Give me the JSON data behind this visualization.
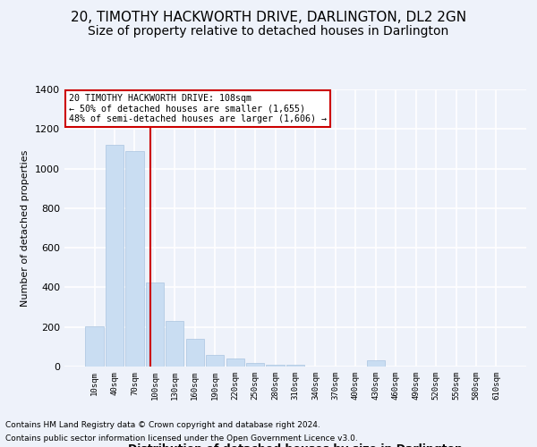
{
  "title": "20, TIMOTHY HACKWORTH DRIVE, DARLINGTON, DL2 2GN",
  "subtitle": "Size of property relative to detached houses in Darlington",
  "xlabel": "Distribution of detached houses by size in Darlington",
  "ylabel": "Number of detached properties",
  "bar_labels": [
    "10sqm",
    "40sqm",
    "70sqm",
    "100sqm",
    "130sqm",
    "160sqm",
    "190sqm",
    "220sqm",
    "250sqm",
    "280sqm",
    "310sqm",
    "340sqm",
    "370sqm",
    "400sqm",
    "430sqm",
    "460sqm",
    "490sqm",
    "520sqm",
    "550sqm",
    "580sqm",
    "610sqm"
  ],
  "bar_values": [
    205,
    1120,
    1090,
    425,
    230,
    140,
    60,
    42,
    20,
    10,
    10,
    0,
    0,
    0,
    30,
    0,
    0,
    0,
    0,
    0,
    0
  ],
  "bar_color": "#c9ddf2",
  "bar_edge_color": "#aac4e0",
  "red_line_label": "20 TIMOTHY HACKWORTH DRIVE: 108sqm",
  "annotation_line2": "← 50% of detached houses are smaller (1,655)",
  "annotation_line3": "48% of semi-detached houses are larger (1,606) →",
  "annotation_box_color": "#ffffff",
  "annotation_box_edge": "#cc0000",
  "footnote1": "Contains HM Land Registry data © Crown copyright and database right 2024.",
  "footnote2": "Contains public sector information licensed under the Open Government Licence v3.0.",
  "ylim": [
    0,
    1400
  ],
  "background_color": "#eef2fa",
  "plot_background": "#eef2fa",
  "grid_color": "#ffffff",
  "title_fontsize": 11,
  "subtitle_fontsize": 10
}
